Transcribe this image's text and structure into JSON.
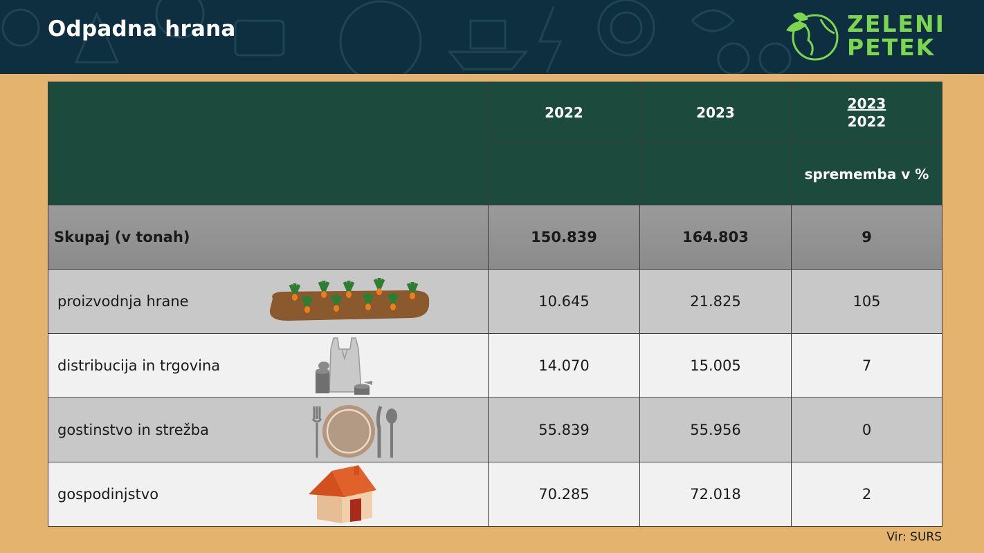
{
  "header": {
    "title": "Odpadna hrana",
    "logo_line1": "ZELENI",
    "logo_line2": "PETEK"
  },
  "colors": {
    "banner": "#0e2f3f",
    "background": "#e4b46f",
    "table_header": "#1c4a3c",
    "total_row": "#929292",
    "row_dark": "#c8c8c8",
    "row_light": "#f1f1f1",
    "logo": "#7bd650"
  },
  "chart_data": {
    "type": "table",
    "columns": [
      "",
      "2022",
      "2023",
      "2023/2022"
    ],
    "ratio_column": {
      "numerator": "2023",
      "denominator": "2022",
      "sublabel": "sprememba v %"
    },
    "total": {
      "label": "Skupaj (v tonah)",
      "values": [
        "150.839",
        "164.803",
        "9"
      ]
    },
    "rows": [
      {
        "label": "proizvodnja hrane",
        "icon": "carrot-field-icon",
        "values": [
          "10.645",
          "21.825",
          "105"
        ]
      },
      {
        "label": "distribucija in trgovina",
        "icon": "shopping-bag-cans-icon",
        "values": [
          "14.070",
          "15.005",
          "7"
        ]
      },
      {
        "label": "gostinstvo in strežba",
        "icon": "plate-cutlery-icon",
        "values": [
          "55.839",
          "55.956",
          "0"
        ]
      },
      {
        "label": "gospodinjstvo",
        "icon": "house-icon",
        "values": [
          "70.285",
          "72.018",
          "2"
        ]
      }
    ]
  },
  "footer": {
    "source": "Vir: SURS"
  }
}
